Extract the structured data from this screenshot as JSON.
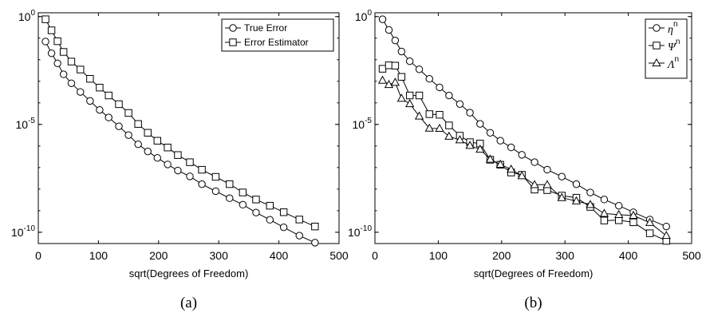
{
  "chart_data": [
    {
      "type": "line",
      "caption": "(a)",
      "xlabel": "sqrt(Degrees of Freedom)",
      "ylabel": "",
      "x_scale": "linear",
      "y_scale": "log",
      "xlim": [
        0,
        500
      ],
      "ylim": [
        3e-11,
        1.5
      ],
      "x_ticks": [
        0,
        100,
        200,
        300,
        400,
        500
      ],
      "x_tick_labels": [
        "0",
        "100",
        "200",
        "300",
        "400",
        "500"
      ],
      "y_ticks": [
        1,
        1e-05,
        1e-10
      ],
      "y_tick_labels": [
        {
          "base": "10",
          "exp": "0"
        },
        {
          "base": "10",
          "exp": "-5"
        },
        {
          "base": "10",
          "exp": "-10"
        }
      ],
      "grid": false,
      "legend_position": "top-right",
      "series": [
        {
          "name": "True Error",
          "marker": "circle",
          "x": [
            12,
            22,
            32,
            42,
            55,
            70,
            86,
            102,
            117,
            134,
            150,
            166,
            182,
            198,
            215,
            232,
            252,
            272,
            295,
            318,
            340,
            362,
            385,
            408,
            434,
            460
          ],
          "y": [
            0.07,
            0.02,
            0.0068,
            0.0021,
            0.00081,
            0.00032,
            0.000123,
            4.7e-05,
            2.1e-05,
            8.2e-06,
            3.2e-06,
            1.2e-06,
            5.6e-07,
            2.8e-07,
            1.4e-07,
            7.3e-08,
            3.9e-08,
            1.7e-08,
            8e-09,
            3.8e-09,
            1.9e-09,
            8.2e-10,
            3.8e-10,
            1.7e-10,
            7e-11,
            3.3e-11
          ]
        },
        {
          "name": "Error Estimator",
          "marker": "square",
          "x": [
            12,
            22,
            32,
            42,
            55,
            70,
            86,
            102,
            117,
            134,
            150,
            166,
            182,
            198,
            215,
            232,
            252,
            272,
            295,
            318,
            340,
            362,
            385,
            408,
            434,
            460
          ],
          "y": [
            0.75,
            0.23,
            0.072,
            0.023,
            0.0082,
            0.0035,
            0.0013,
            0.00051,
            0.00022,
            8.7e-05,
            3.4e-05,
            1.05e-05,
            4.1e-06,
            1.75e-06,
            8.5e-07,
            3.8e-07,
            1.77e-07,
            7.9e-08,
            3.7e-08,
            1.7e-08,
            7e-09,
            3.3e-09,
            1.7e-09,
            8.5e-10,
            3.9e-10,
            1.85e-10
          ]
        }
      ]
    },
    {
      "type": "line",
      "caption": "(b)",
      "xlabel": "sqrt(Degrees of Freedom)",
      "ylabel": "",
      "x_scale": "linear",
      "y_scale": "log",
      "xlim": [
        0,
        500
      ],
      "ylim": [
        3e-11,
        1.5
      ],
      "x_ticks": [
        0,
        100,
        200,
        300,
        400,
        500
      ],
      "x_tick_labels": [
        "0",
        "100",
        "200",
        "300",
        "400",
        "500"
      ],
      "y_ticks": [
        1,
        1e-05,
        1e-10
      ],
      "y_tick_labels": [
        {
          "base": "10",
          "exp": "0"
        },
        {
          "base": "10",
          "exp": "-5"
        },
        {
          "base": "10",
          "exp": "-10"
        }
      ],
      "grid": false,
      "legend_position": "top-right",
      "series": [
        {
          "name": "η",
          "name_sup": "n",
          "marker": "circle",
          "x": [
            12,
            22,
            32,
            42,
            55,
            70,
            86,
            102,
            117,
            134,
            150,
            166,
            182,
            198,
            215,
            232,
            252,
            272,
            295,
            318,
            340,
            362,
            385,
            408,
            434,
            460
          ],
          "y": [
            0.75,
            0.24,
            0.078,
            0.024,
            0.0085,
            0.0036,
            0.0013,
            0.00052,
            0.00022,
            8.8e-05,
            3.5e-05,
            1.06e-05,
            4.1e-06,
            1.76e-06,
            8.6e-07,
            3.9e-07,
            1.78e-07,
            8e-08,
            3.8e-08,
            1.7e-08,
            7e-09,
            3.3e-09,
            1.7e-09,
            8.5e-10,
            3.9e-10,
            1.85e-10
          ]
        },
        {
          "name": "Ψ",
          "name_sup": "n",
          "marker": "square",
          "x": [
            12,
            22,
            32,
            42,
            55,
            70,
            86,
            102,
            117,
            134,
            150,
            166,
            182,
            198,
            215,
            232,
            252,
            272,
            295,
            318,
            340,
            362,
            385,
            408,
            434,
            460
          ],
          "y": [
            0.0038,
            0.0055,
            0.0053,
            0.0016,
            0.00022,
            0.00022,
            3e-05,
            2.8e-05,
            9e-06,
            3e-06,
            1.5e-06,
            1.3e-06,
            2.3e-07,
            1.35e-07,
            5.9e-08,
            4.6e-08,
            9.5e-09,
            9e-09,
            5e-09,
            4e-09,
            1.5e-09,
            3.5e-10,
            3.6e-10,
            2.9e-10,
            9e-11,
            4e-11
          ]
        },
        {
          "name": "Λ",
          "name_sup": "n",
          "marker": "triangle",
          "x": [
            12,
            22,
            32,
            42,
            55,
            70,
            86,
            102,
            117,
            134,
            150,
            166,
            182,
            198,
            215,
            232,
            252,
            272,
            295,
            318,
            340,
            362,
            385,
            408,
            434,
            460
          ],
          "y": [
            0.0011,
            0.0007,
            0.00088,
            0.00016,
            9e-05,
            2.4e-05,
            6.6e-06,
            6.5e-06,
            2.8e-06,
            1.9e-06,
            1.05e-06,
            7e-07,
            2.4e-07,
            1.4e-07,
            8.3e-08,
            4.1e-08,
            1.6e-08,
            1.6e-08,
            4e-09,
            2.8e-09,
            1.9e-09,
            7.4e-10,
            6.5e-10,
            6e-10,
            2.8e-10,
            7e-11
          ]
        }
      ]
    }
  ]
}
